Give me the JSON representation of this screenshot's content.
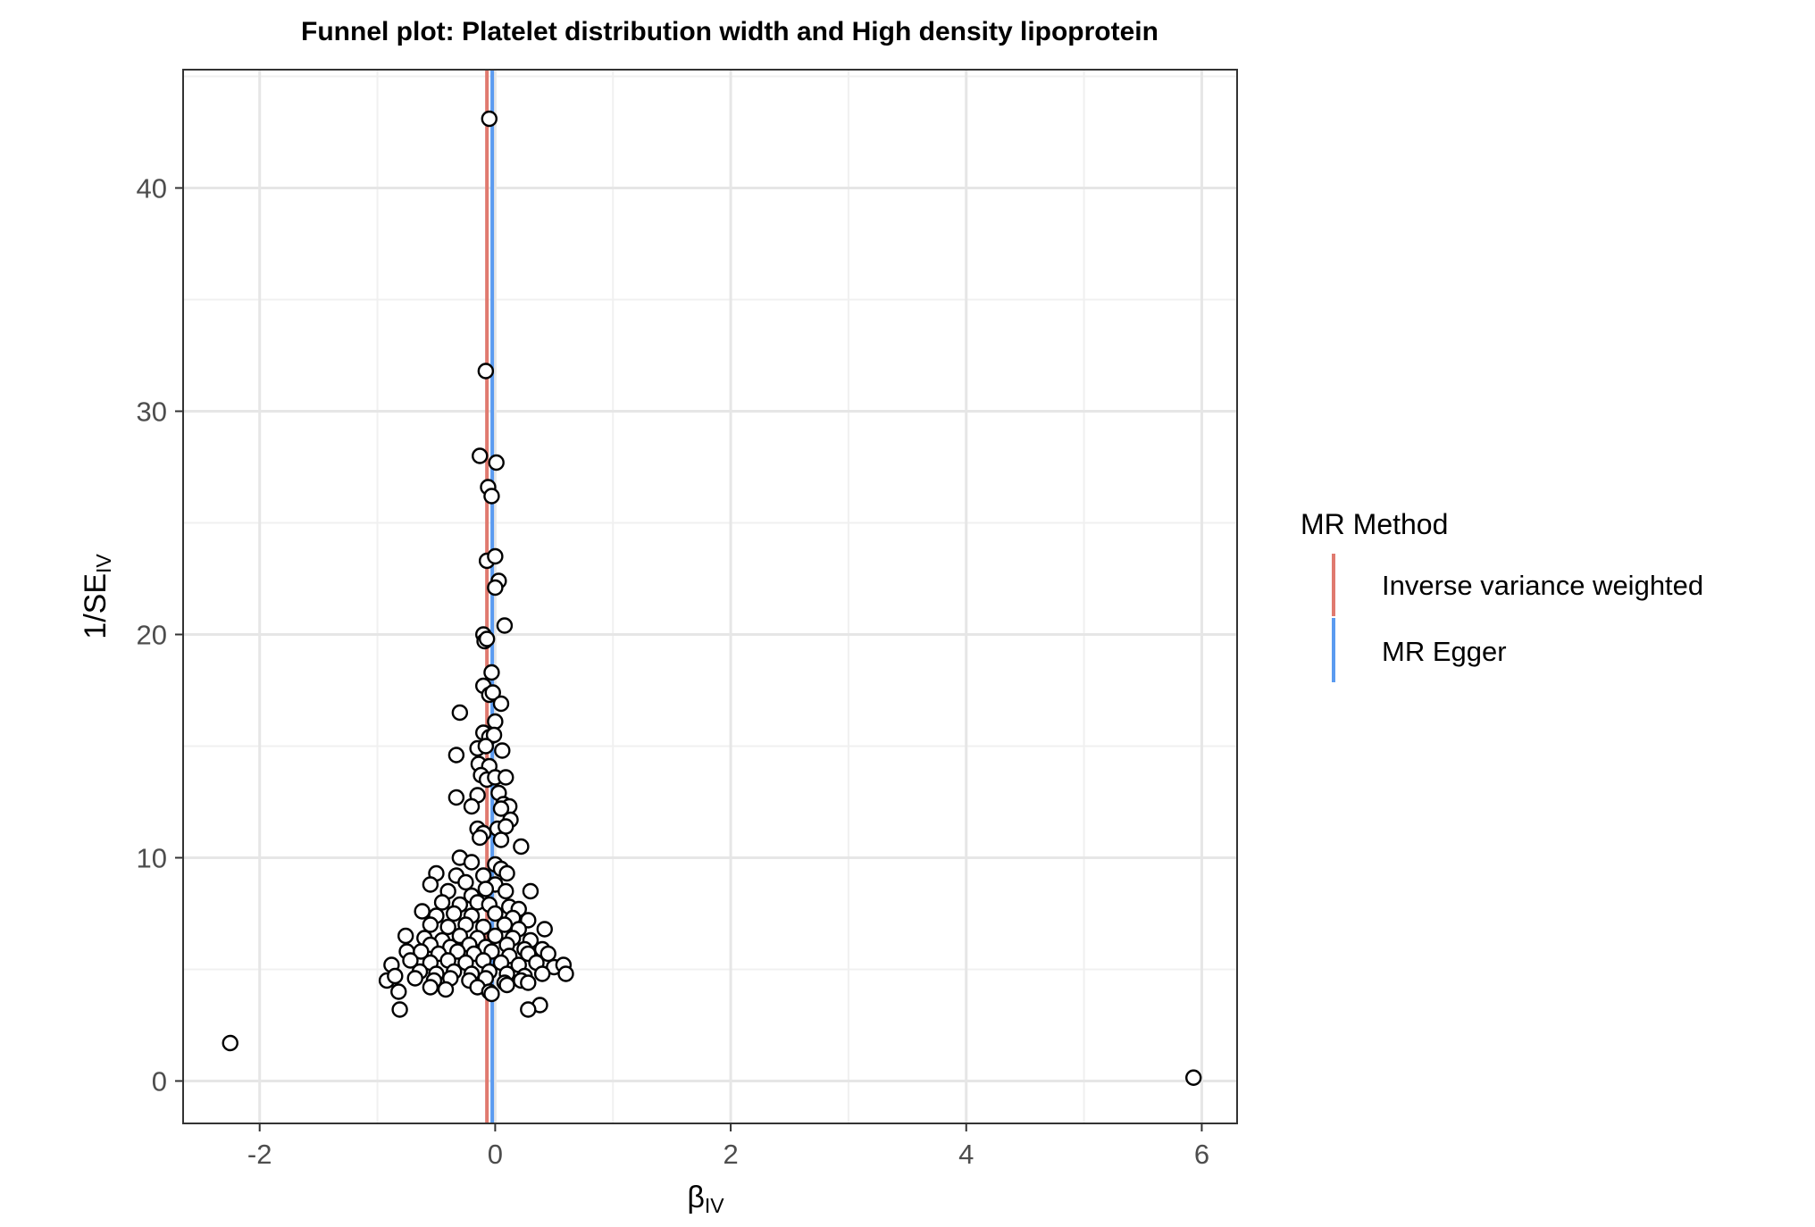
{
  "chart_data": {
    "type": "scatter",
    "title": "Funnel plot: Platelet distribution width and High density lipoprotein",
    "xlabel": {
      "main": "β",
      "sub": "IV"
    },
    "ylabel": {
      "main": "1/SE",
      "sub": "IV"
    },
    "xlim": [
      -2.65,
      6.3
    ],
    "ylim": [
      -1.9,
      45.3
    ],
    "x_ticks": [
      -2,
      0,
      2,
      4,
      6
    ],
    "x_tick_labels": [
      "-2",
      "0",
      "2",
      "4",
      "6"
    ],
    "y_ticks": [
      0,
      10,
      20,
      30,
      40
    ],
    "y_tick_labels": [
      "0",
      "10",
      "20",
      "30",
      "40"
    ],
    "grid": true,
    "legend": {
      "title": "MR Method",
      "position": "right",
      "entries": [
        {
          "label": "Inverse variance weighted",
          "color": "#e07a6f"
        },
        {
          "label": "MR Egger",
          "color": "#5b9bf0"
        }
      ]
    },
    "vlines": [
      {
        "method": "Inverse variance weighted",
        "x": -0.07,
        "color": "#e07a6f"
      },
      {
        "method": "MR Egger",
        "x": -0.025,
        "color": "#5b9bf0"
      }
    ],
    "points": [
      [
        -0.05,
        43.1
      ],
      [
        -0.08,
        31.8
      ],
      [
        -0.13,
        28.0
      ],
      [
        0.01,
        27.7
      ],
      [
        -0.06,
        26.6
      ],
      [
        -0.03,
        26.2
      ],
      [
        -0.07,
        23.3
      ],
      [
        0.0,
        23.5
      ],
      [
        0.03,
        22.4
      ],
      [
        0.0,
        22.1
      ],
      [
        0.08,
        20.4
      ],
      [
        -0.1,
        20.0
      ],
      [
        -0.09,
        19.7
      ],
      [
        -0.07,
        19.8
      ],
      [
        -0.03,
        18.3
      ],
      [
        -0.1,
        17.7
      ],
      [
        -0.05,
        17.3
      ],
      [
        -0.02,
        17.4
      ],
      [
        0.05,
        16.9
      ],
      [
        -0.3,
        16.5
      ],
      [
        0.0,
        16.1
      ],
      [
        -0.1,
        15.6
      ],
      [
        -0.05,
        15.4
      ],
      [
        -0.01,
        15.5
      ],
      [
        -0.33,
        14.6
      ],
      [
        -0.15,
        14.9
      ],
      [
        -0.08,
        15.0
      ],
      [
        0.06,
        14.8
      ],
      [
        -0.14,
        14.2
      ],
      [
        -0.05,
        14.1
      ],
      [
        -0.12,
        13.7
      ],
      [
        -0.07,
        13.5
      ],
      [
        0.0,
        13.6
      ],
      [
        0.09,
        13.6
      ],
      [
        0.03,
        12.9
      ],
      [
        -0.33,
        12.7
      ],
      [
        -0.15,
        12.8
      ],
      [
        -0.2,
        12.3
      ],
      [
        0.07,
        12.4
      ],
      [
        0.12,
        12.3
      ],
      [
        0.05,
        12.2
      ],
      [
        0.13,
        11.7
      ],
      [
        -0.15,
        11.3
      ],
      [
        -0.1,
        11.1
      ],
      [
        0.02,
        11.3
      ],
      [
        0.09,
        11.4
      ],
      [
        -0.13,
        10.9
      ],
      [
        0.05,
        10.8
      ],
      [
        0.22,
        10.5
      ],
      [
        -0.3,
        10.0
      ],
      [
        -0.2,
        9.8
      ],
      [
        0.0,
        9.7
      ],
      [
        -0.5,
        9.3
      ],
      [
        -0.33,
        9.2
      ],
      [
        -0.1,
        9.2
      ],
      [
        0.05,
        9.5
      ],
      [
        0.1,
        9.3
      ],
      [
        -0.25,
        8.9
      ],
      [
        0.0,
        8.8
      ],
      [
        0.3,
        8.5
      ],
      [
        -0.55,
        8.8
      ],
      [
        -0.4,
        8.5
      ],
      [
        -0.2,
        8.3
      ],
      [
        -0.08,
        8.6
      ],
      [
        0.09,
        8.5
      ],
      [
        -0.45,
        8.0
      ],
      [
        -0.3,
        7.9
      ],
      [
        -0.15,
        8.0
      ],
      [
        -0.05,
        7.9
      ],
      [
        0.12,
        7.8
      ],
      [
        0.2,
        7.7
      ],
      [
        -0.62,
        7.6
      ],
      [
        -0.5,
        7.4
      ],
      [
        -0.35,
        7.5
      ],
      [
        -0.2,
        7.4
      ],
      [
        0.0,
        7.5
      ],
      [
        0.15,
        7.3
      ],
      [
        0.28,
        7.2
      ],
      [
        -0.55,
        7.0
      ],
      [
        -0.4,
        6.9
      ],
      [
        -0.25,
        7.0
      ],
      [
        -0.1,
        6.9
      ],
      [
        0.08,
        7.0
      ],
      [
        0.2,
        6.8
      ],
      [
        0.42,
        6.8
      ],
      [
        -0.76,
        6.5
      ],
      [
        -0.6,
        6.4
      ],
      [
        -0.45,
        6.3
      ],
      [
        -0.3,
        6.5
      ],
      [
        -0.15,
        6.4
      ],
      [
        0.0,
        6.5
      ],
      [
        0.15,
        6.4
      ],
      [
        0.3,
        6.3
      ],
      [
        -0.55,
        6.1
      ],
      [
        -0.38,
        6.0
      ],
      [
        -0.22,
        6.1
      ],
      [
        -0.08,
        6.0
      ],
      [
        0.1,
        6.1
      ],
      [
        0.25,
        5.9
      ],
      [
        0.4,
        5.9
      ],
      [
        -0.75,
        5.8
      ],
      [
        -0.63,
        5.8
      ],
      [
        -0.48,
        5.7
      ],
      [
        -0.32,
        5.8
      ],
      [
        -0.18,
        5.7
      ],
      [
        -0.03,
        5.8
      ],
      [
        0.12,
        5.6
      ],
      [
        0.28,
        5.7
      ],
      [
        0.45,
        5.7
      ],
      [
        -0.72,
        5.4
      ],
      [
        -0.55,
        5.3
      ],
      [
        -0.4,
        5.4
      ],
      [
        -0.25,
        5.3
      ],
      [
        -0.1,
        5.4
      ],
      [
        0.05,
        5.3
      ],
      [
        0.2,
        5.2
      ],
      [
        0.35,
        5.3
      ],
      [
        0.5,
        5.1
      ],
      [
        0.58,
        5.2
      ],
      [
        -0.88,
        5.2
      ],
      [
        -0.64,
        4.9
      ],
      [
        -0.5,
        4.8
      ],
      [
        -0.35,
        4.9
      ],
      [
        -0.2,
        4.8
      ],
      [
        -0.05,
        4.9
      ],
      [
        0.1,
        4.8
      ],
      [
        0.25,
        4.7
      ],
      [
        0.4,
        4.8
      ],
      [
        0.6,
        4.8
      ],
      [
        -0.92,
        4.5
      ],
      [
        -0.85,
        4.7
      ],
      [
        -0.68,
        4.6
      ],
      [
        -0.52,
        4.5
      ],
      [
        -0.38,
        4.6
      ],
      [
        -0.22,
        4.5
      ],
      [
        -0.08,
        4.6
      ],
      [
        0.08,
        4.4
      ],
      [
        0.22,
        4.5
      ],
      [
        -0.55,
        4.2
      ],
      [
        -0.42,
        4.1
      ],
      [
        -0.15,
        4.2
      ],
      [
        -0.05,
        4.0
      ],
      [
        0.1,
        4.3
      ],
      [
        0.28,
        4.4
      ],
      [
        -0.82,
        4.0
      ],
      [
        -0.03,
        3.9
      ],
      [
        0.38,
        3.4
      ],
      [
        0.28,
        3.2
      ],
      [
        -0.81,
        3.2
      ],
      [
        -2.25,
        1.7
      ],
      [
        5.93,
        0.15
      ]
    ]
  }
}
